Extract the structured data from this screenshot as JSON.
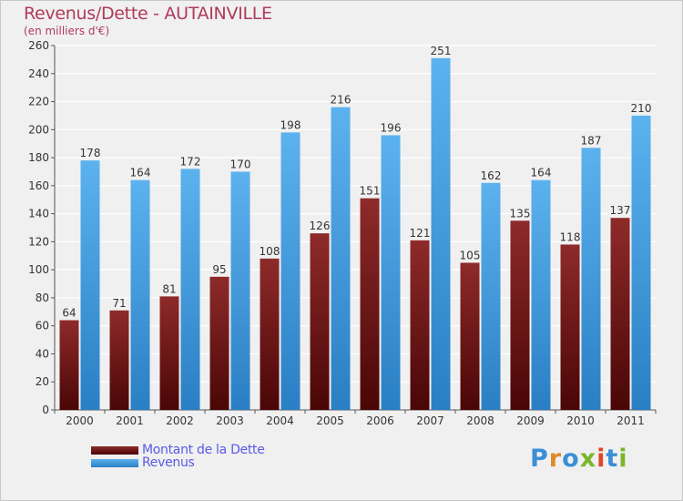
{
  "title": "Revenus/Dette - AUTAINVILLE",
  "subtitle": "(en milliers d'€)",
  "chart_data": {
    "type": "bar",
    "categories": [
      "2000",
      "2001",
      "2002",
      "2003",
      "2004",
      "2005",
      "2006",
      "2007",
      "2008",
      "2009",
      "2010",
      "2011"
    ],
    "series": [
      {
        "name": "Montant de la Dette",
        "color": "#7a1a1a",
        "values": [
          64,
          71,
          81,
          95,
          108,
          126,
          151,
          121,
          105,
          135,
          118,
          137
        ]
      },
      {
        "name": "Revenus",
        "color": "#4aa3e6",
        "values": [
          178,
          164,
          172,
          170,
          198,
          216,
          196,
          251,
          162,
          164,
          187,
          210
        ]
      }
    ],
    "ylim": [
      0,
      260
    ],
    "yticks": [
      0,
      20,
      40,
      60,
      80,
      100,
      120,
      140,
      160,
      180,
      200,
      220,
      240,
      260
    ],
    "grid": true,
    "legend": "bottom-left"
  },
  "legend": {
    "items": [
      {
        "label": "Montant de la Dette",
        "color": "#7a1a1a"
      },
      {
        "label": "Revenus",
        "color": "#4aa3e6"
      }
    ]
  },
  "logo": {
    "text": "Proxiti",
    "letter_colors": [
      "#3a8fd6",
      "#e08a2a",
      "#3a8fd6",
      "#7ab52a",
      "#e0462a",
      "#3a8fd6",
      "#7ab52a"
    ]
  }
}
